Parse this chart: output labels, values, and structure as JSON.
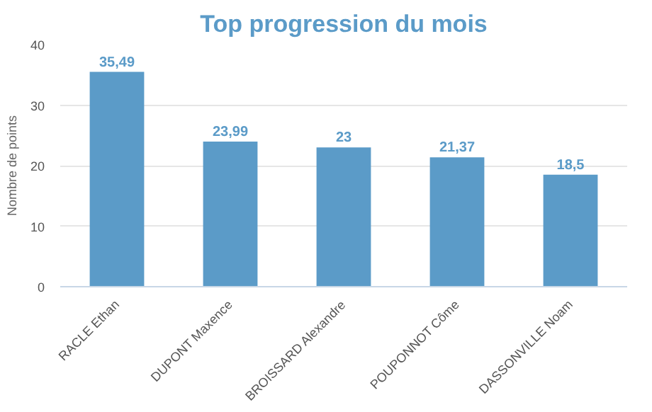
{
  "chart_data": {
    "type": "bar",
    "title": "Top progression du mois",
    "ylabel": "Nombre de points",
    "categories": [
      "RACLE Ethan",
      "DUPONT Maxence",
      "BROISSARD Alexandre",
      "POUPONNOT Côme",
      "DASSONVILLE Noam"
    ],
    "values": [
      35.49,
      23.99,
      23,
      21.37,
      18.5
    ],
    "value_labels": [
      "35,49",
      "23,99",
      "23",
      "21,37",
      "18,5"
    ],
    "color": "#5b9bc8",
    "ylim": [
      0,
      40
    ],
    "yticks": [
      0,
      10,
      20,
      30,
      40
    ],
    "grid": "y"
  }
}
